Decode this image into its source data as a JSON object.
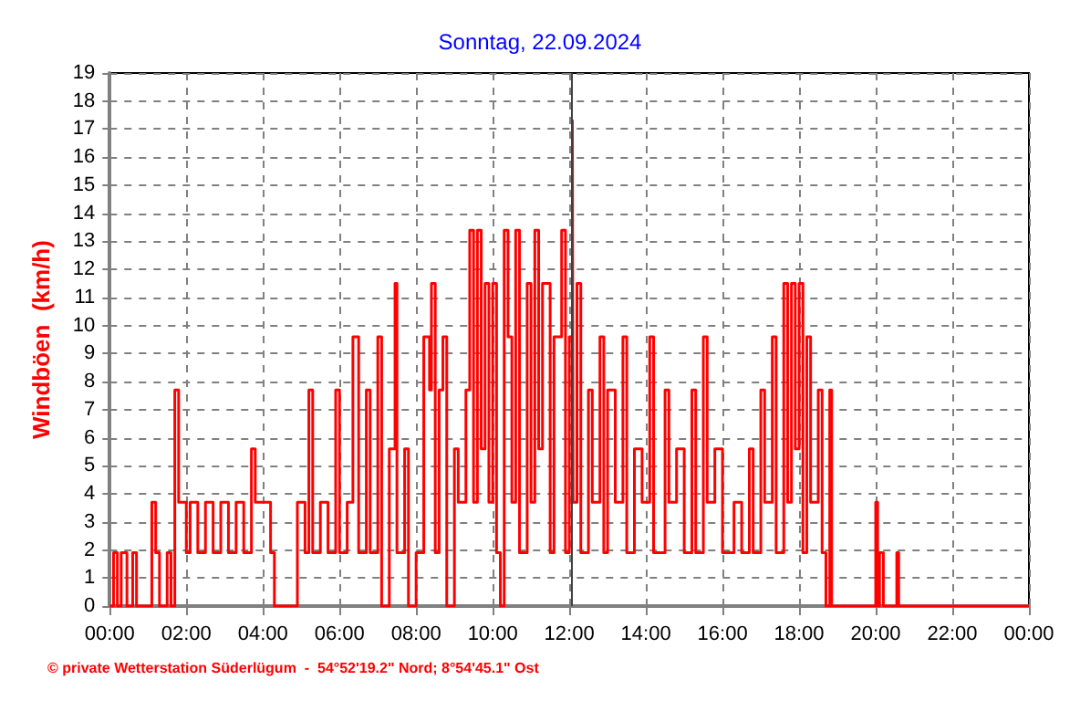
{
  "chart_data": {
    "type": "step",
    "title": "Sonntag, 22.09.2024",
    "ylabel": "Windböen  (km/h)",
    "annotations": [
      "© private Wetterstation Süderlügum  -  54°52'19.2\" Nord; 8°54'45.1\" Ost"
    ],
    "x": [
      0,
      0.1,
      0.2,
      0.3,
      0.45,
      0.6,
      0.7,
      1.0,
      1.1,
      1.2,
      1.3,
      1.5,
      1.6,
      1.7,
      1.8,
      2.0,
      2.1,
      2.3,
      2.5,
      2.7,
      2.9,
      3.1,
      3.3,
      3.5,
      3.7,
      3.8,
      4.2,
      4.3,
      4.8,
      4.9,
      5.1,
      5.2,
      5.3,
      5.5,
      5.7,
      5.9,
      6.0,
      6.2,
      6.35,
      6.5,
      6.7,
      6.8,
      7.0,
      7.1,
      7.3,
      7.45,
      7.5,
      7.7,
      7.8,
      8.0,
      8.2,
      8.35,
      8.4,
      8.5,
      8.6,
      8.7,
      8.8,
      9.0,
      9.1,
      9.3,
      9.4,
      9.5,
      9.6,
      9.7,
      9.8,
      9.9,
      10.0,
      10.1,
      10.2,
      10.3,
      10.4,
      10.5,
      10.6,
      10.7,
      10.9,
      11.0,
      11.1,
      11.2,
      11.3,
      11.5,
      11.6,
      11.8,
      11.9,
      12.0,
      12.08,
      12.1,
      12.2,
      12.3,
      12.5,
      12.6,
      12.8,
      12.9,
      13.0,
      13.2,
      13.4,
      13.5,
      13.7,
      13.9,
      14.1,
      14.2,
      14.5,
      14.6,
      14.8,
      15.0,
      15.2,
      15.3,
      15.5,
      15.6,
      15.8,
      16.0,
      16.3,
      16.5,
      16.7,
      16.8,
      17.0,
      17.1,
      17.3,
      17.4,
      17.6,
      17.7,
      17.8,
      17.9,
      18.0,
      18.1,
      18.2,
      18.3,
      18.5,
      18.6,
      18.7,
      18.8,
      18.85,
      19.9,
      20.0,
      20.05,
      20.1,
      20.2,
      20.5,
      20.55,
      20.6,
      24.0
    ],
    "series": [
      {
        "color": "#ff0000",
        "values": [
          0,
          1.9,
          0,
          1.9,
          0,
          1.9,
          0,
          0,
          3.7,
          1.9,
          0,
          1.9,
          0,
          7.7,
          3.7,
          1.9,
          3.7,
          1.9,
          3.7,
          1.9,
          3.7,
          1.9,
          3.7,
          1.9,
          5.6,
          3.7,
          1.9,
          0,
          0,
          3.7,
          1.9,
          7.7,
          1.9,
          3.7,
          1.9,
          7.7,
          1.9,
          3.7,
          9.6,
          1.9,
          7.7,
          1.9,
          9.6,
          0,
          5.6,
          11.5,
          1.9,
          5.6,
          0,
          1.9,
          9.6,
          7.7,
          11.5,
          1.9,
          7.7,
          9.6,
          0,
          5.6,
          3.7,
          7.7,
          13.4,
          3.7,
          13.4,
          5.6,
          11.5,
          3.7,
          11.5,
          1.9,
          0,
          13.4,
          9.6,
          3.7,
          13.4,
          1.9,
          11.5,
          3.7,
          13.4,
          5.6,
          11.5,
          1.9,
          9.6,
          13.4,
          1.9,
          9.6,
          17.3,
          3.7,
          11.5,
          1.9,
          7.7,
          3.7,
          9.6,
          1.9,
          7.7,
          3.7,
          9.6,
          1.9,
          5.6,
          3.7,
          9.6,
          1.9,
          7.7,
          3.7,
          5.6,
          1.9,
          7.7,
          1.9,
          9.6,
          3.7,
          5.6,
          1.9,
          3.7,
          1.9,
          5.6,
          1.9,
          7.7,
          3.7,
          9.6,
          1.9,
          11.5,
          3.7,
          11.5,
          5.6,
          11.5,
          1.9,
          9.6,
          3.7,
          7.7,
          1.9,
          0,
          7.7,
          0,
          0,
          3.7,
          0,
          1.9,
          0,
          0,
          1.9,
          0,
          0
        ]
      }
    ],
    "xlim": [
      0,
      24
    ],
    "xticks": [
      {
        "value": 0,
        "label": "00:00"
      },
      {
        "value": 2,
        "label": "02:00"
      },
      {
        "value": 4,
        "label": "04:00"
      },
      {
        "value": 6,
        "label": "06:00"
      },
      {
        "value": 8,
        "label": "08:00"
      },
      {
        "value": 10,
        "label": "10:00"
      },
      {
        "value": 12,
        "label": "12:00"
      },
      {
        "value": 14,
        "label": "14:00"
      },
      {
        "value": 16,
        "label": "16:00"
      },
      {
        "value": 18,
        "label": "18:00"
      },
      {
        "value": 20,
        "label": "20:00"
      },
      {
        "value": 22,
        "label": "22:00"
      },
      {
        "value": 24,
        "label": "00:00"
      }
    ],
    "ylim": [
      0,
      19
    ],
    "yticks": [
      0,
      1,
      2,
      3,
      4,
      5,
      6,
      7,
      8,
      9,
      10,
      11,
      12,
      13,
      14,
      15,
      16,
      17,
      18,
      19
    ],
    "ref_lines": [
      {
        "axis": "x",
        "value": 12.08,
        "color": "#404040"
      }
    ],
    "grid": true,
    "marker": "none",
    "line_style": "solid"
  }
}
